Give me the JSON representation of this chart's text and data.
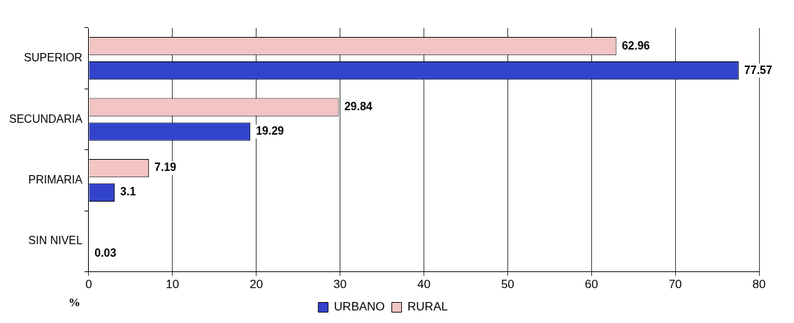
{
  "chart_data": {
    "type": "bar",
    "orientation": "horizontal",
    "categories": [
      "SUPERIOR",
      "SECUNDARIA",
      "PRIMARIA",
      "SIN NIVEL"
    ],
    "series": [
      {
        "name": "URBANO",
        "color": "#3344cc",
        "values": [
          77.57,
          19.29,
          3.1,
          0.03
        ]
      },
      {
        "name": "RURAL",
        "color": "#f2c4c4",
        "values": [
          62.96,
          29.84,
          7.19,
          null
        ]
      }
    ],
    "xlabel": "%",
    "xlim": [
      0,
      80
    ],
    "xticks": [
      0,
      10,
      20,
      30,
      40,
      50,
      60,
      70,
      80
    ],
    "grid": "x",
    "legend": "bottom",
    "data_labels": true
  }
}
